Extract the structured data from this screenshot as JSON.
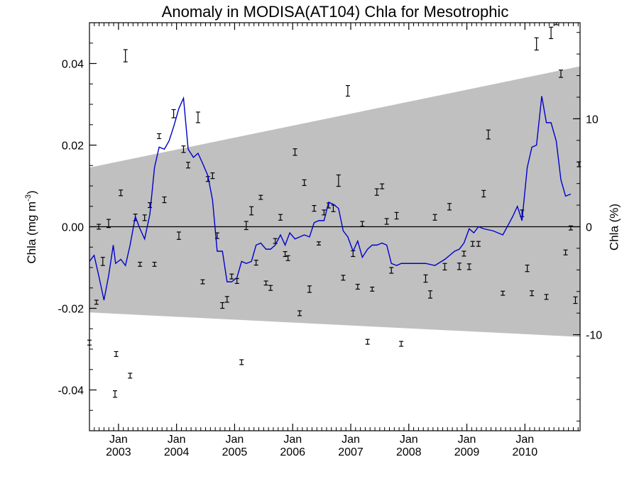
{
  "chart_data": {
    "type": "scatter",
    "title": "Anomaly in MODISA(AT104) Chla for Mesotrophic",
    "ylabel_left": "Chla (mg m",
    "ylabel_left_superscript": "-3",
    "ylabel_left_close": ")",
    "ylabel_right": "Chla (%)",
    "xlim": [
      2002.5,
      2010.95
    ],
    "ylim": [
      -0.05,
      0.05
    ],
    "y2lim": [
      -18.9,
      18.9
    ],
    "grid": false,
    "yticks_left": [
      {
        "value": 0.04,
        "label": "0.04"
      },
      {
        "value": 0.02,
        "label": "0.02"
      },
      {
        "value": 0.0,
        "label": "0.00"
      },
      {
        "value": -0.02,
        "label": "-0.02"
      },
      {
        "value": -0.04,
        "label": "-0.04"
      }
    ],
    "yticks_right": [
      {
        "value": 10,
        "label": "10"
      },
      {
        "value": 0,
        "label": "0"
      },
      {
        "value": -10,
        "label": "-10"
      }
    ],
    "xticks": [
      {
        "value": 2003,
        "month": "Jan",
        "year": "2003"
      },
      {
        "value": 2004,
        "month": "Jan",
        "year": "2004"
      },
      {
        "value": 2005,
        "month": "Jan",
        "year": "2005"
      },
      {
        "value": 2006,
        "month": "Jan",
        "year": "2006"
      },
      {
        "value": 2007,
        "month": "Jan",
        "year": "2007"
      },
      {
        "value": 2008,
        "month": "Jan",
        "year": "2008"
      },
      {
        "value": 2009,
        "month": "Jan",
        "year": "2009"
      },
      {
        "value": 2010,
        "month": "Jan",
        "year": "2010"
      }
    ],
    "band": {
      "color": "#c0c0c0",
      "upper": [
        [
          2002.5,
          0.0145
        ],
        [
          2010.95,
          0.0393
        ]
      ],
      "lower": [
        [
          2002.5,
          -0.021
        ],
        [
          2010.95,
          -0.027
        ]
      ]
    },
    "zero_line": {
      "y": 0,
      "color": "#000000"
    },
    "line_series": {
      "color": "#0000cc",
      "points": [
        [
          2002.5,
          -0.0085
        ],
        [
          2002.58,
          -0.007
        ],
        [
          2002.66,
          -0.012
        ],
        [
          2002.75,
          -0.018
        ],
        [
          2002.83,
          -0.012
        ],
        [
          2002.91,
          -0.0045
        ],
        [
          2002.95,
          -0.009
        ],
        [
          2003.04,
          -0.008
        ],
        [
          2003.12,
          -0.0095
        ],
        [
          2003.2,
          -0.0045
        ],
        [
          2003.29,
          0.0025
        ],
        [
          2003.37,
          -0.0005
        ],
        [
          2003.45,
          -0.003
        ],
        [
          2003.54,
          0.003
        ],
        [
          2003.62,
          0.0145
        ],
        [
          2003.7,
          0.0195
        ],
        [
          2003.79,
          0.019
        ],
        [
          2003.87,
          0.021
        ],
        [
          2003.95,
          0.0245
        ],
        [
          2004.04,
          0.029
        ],
        [
          2004.12,
          0.0315
        ],
        [
          2004.2,
          0.019
        ],
        [
          2004.29,
          0.017
        ],
        [
          2004.37,
          0.018
        ],
        [
          2004.45,
          0.0155
        ],
        [
          2004.54,
          0.0125
        ],
        [
          2004.62,
          0.0065
        ],
        [
          2004.7,
          -0.006
        ],
        [
          2004.79,
          -0.006
        ],
        [
          2004.87,
          -0.0135
        ],
        [
          2004.95,
          -0.0135
        ],
        [
          2005.04,
          -0.0125
        ],
        [
          2005.12,
          -0.0085
        ],
        [
          2005.2,
          -0.009
        ],
        [
          2005.29,
          -0.0085
        ],
        [
          2005.37,
          -0.0045
        ],
        [
          2005.45,
          -0.004
        ],
        [
          2005.54,
          -0.0055
        ],
        [
          2005.62,
          -0.0055
        ],
        [
          2005.7,
          -0.0045
        ],
        [
          2005.79,
          -0.002
        ],
        [
          2005.87,
          -0.0045
        ],
        [
          2005.95,
          -0.0015
        ],
        [
          2006.04,
          -0.003
        ],
        [
          2006.12,
          -0.0025
        ],
        [
          2006.2,
          -0.002
        ],
        [
          2006.29,
          -0.0025
        ],
        [
          2006.37,
          0.001
        ],
        [
          2006.45,
          0.0015
        ],
        [
          2006.54,
          0.0015
        ],
        [
          2006.62,
          0.006
        ],
        [
          2006.7,
          0.0055
        ],
        [
          2006.79,
          0.0045
        ],
        [
          2006.87,
          -0.001
        ],
        [
          2006.95,
          -0.0025
        ],
        [
          2007.04,
          -0.006
        ],
        [
          2007.12,
          -0.0035
        ],
        [
          2007.2,
          -0.0075
        ],
        [
          2007.29,
          -0.0055
        ],
        [
          2007.37,
          -0.0045
        ],
        [
          2007.45,
          -0.0045
        ],
        [
          2007.54,
          -0.004
        ],
        [
          2007.62,
          -0.0045
        ],
        [
          2007.7,
          -0.009
        ],
        [
          2007.79,
          -0.0095
        ],
        [
          2007.87,
          -0.009
        ],
        [
          2008.04,
          -0.009
        ],
        [
          2008.29,
          -0.009
        ],
        [
          2008.45,
          -0.0095
        ],
        [
          2008.62,
          -0.008
        ],
        [
          2008.79,
          -0.006
        ],
        [
          2008.87,
          -0.0055
        ],
        [
          2008.95,
          -0.004
        ],
        [
          2009.04,
          -0.0005
        ],
        [
          2009.12,
          -0.0015
        ],
        [
          2009.2,
          0.0
        ],
        [
          2009.29,
          -0.0005
        ],
        [
          2009.45,
          -0.001
        ],
        [
          2009.62,
          -0.002
        ],
        [
          2009.79,
          0.0025
        ],
        [
          2009.87,
          0.005
        ],
        [
          2009.95,
          0.0015
        ],
        [
          2010.04,
          0.0145
        ],
        [
          2010.12,
          0.0195
        ],
        [
          2010.2,
          0.02
        ],
        [
          2010.29,
          0.032
        ],
        [
          2010.37,
          0.0255
        ],
        [
          2010.45,
          0.0255
        ],
        [
          2010.54,
          0.021
        ],
        [
          2010.62,
          0.0115
        ],
        [
          2010.7,
          0.0075
        ],
        [
          2010.79,
          0.008
        ]
      ]
    },
    "error_bars": [
      [
        2002.5,
        -0.0284,
        0.0006
      ],
      [
        2002.62,
        -0.0185,
        0.0005
      ],
      [
        2002.66,
        0.0,
        0.0006
      ],
      [
        2002.73,
        -0.0085,
        0.001
      ],
      [
        2002.83,
        0.0008,
        0.001
      ],
      [
        2002.94,
        -0.041,
        0.0008
      ],
      [
        2002.96,
        -0.0312,
        0.0006
      ],
      [
        2003.04,
        0.0083,
        0.0007
      ],
      [
        2003.12,
        0.0419,
        0.0015
      ],
      [
        2003.2,
        -0.0365,
        0.0006
      ],
      [
        2003.29,
        0.0023,
        0.0008
      ],
      [
        2003.37,
        -0.0092,
        0.0005
      ],
      [
        2003.45,
        0.0022,
        0.0007
      ],
      [
        2003.54,
        0.0053,
        0.0006
      ],
      [
        2003.62,
        -0.0092,
        0.0005
      ],
      [
        2003.7,
        0.0222,
        0.0006
      ],
      [
        2003.79,
        0.0066,
        0.0007
      ],
      [
        2003.95,
        0.0277,
        0.001
      ],
      [
        2004.04,
        -0.0022,
        0.0009
      ],
      [
        2004.12,
        0.019,
        0.0008
      ],
      [
        2004.2,
        0.0151,
        0.0007
      ],
      [
        2004.37,
        0.0268,
        0.0013
      ],
      [
        2004.45,
        -0.0135,
        0.0005
      ],
      [
        2004.54,
        0.0117,
        0.0006
      ],
      [
        2004.62,
        0.0125,
        0.0007
      ],
      [
        2004.7,
        -0.0022,
        0.0007
      ],
      [
        2004.79,
        -0.0193,
        0.0007
      ],
      [
        2004.87,
        -0.0178,
        0.0007
      ],
      [
        2004.95,
        -0.0122,
        0.0006
      ],
      [
        2005.04,
        -0.0133,
        0.0006
      ],
      [
        2005.12,
        -0.0332,
        0.0006
      ],
      [
        2005.2,
        0.0003,
        0.001
      ],
      [
        2005.29,
        0.0039,
        0.001
      ],
      [
        2005.37,
        -0.0088,
        0.0006
      ],
      [
        2005.45,
        0.0072,
        0.0005
      ],
      [
        2005.54,
        -0.0138,
        0.0005
      ],
      [
        2005.62,
        -0.015,
        0.0006
      ],
      [
        2005.7,
        -0.0035,
        0.0006
      ],
      [
        2005.79,
        0.0023,
        0.0007
      ],
      [
        2005.87,
        -0.0067,
        0.0006
      ],
      [
        2005.92,
        -0.0077,
        0.0006
      ],
      [
        2006.04,
        0.0183,
        0.0008
      ],
      [
        2006.12,
        -0.0212,
        0.0006
      ],
      [
        2006.2,
        0.0108,
        0.0007
      ],
      [
        2006.29,
        -0.0153,
        0.0008
      ],
      [
        2006.37,
        0.0045,
        0.0007
      ],
      [
        2006.45,
        -0.0041,
        0.0004
      ],
      [
        2006.54,
        0.0035,
        0.0006
      ],
      [
        2006.62,
        0.0052,
        0.0006
      ],
      [
        2006.7,
        0.0045,
        0.0008
      ],
      [
        2006.79,
        0.0113,
        0.0014
      ],
      [
        2006.87,
        -0.0125,
        0.0006
      ],
      [
        2006.95,
        0.0333,
        0.0013
      ],
      [
        2007.04,
        -0.0066,
        0.0007
      ],
      [
        2007.12,
        -0.0147,
        0.0006
      ],
      [
        2007.2,
        0.0007,
        0.0006
      ],
      [
        2007.29,
        -0.0282,
        0.0006
      ],
      [
        2007.37,
        -0.0153,
        0.0005
      ],
      [
        2007.45,
        0.0085,
        0.0008
      ],
      [
        2007.54,
        0.0099,
        0.0006
      ],
      [
        2007.62,
        0.0013,
        0.0007
      ],
      [
        2007.7,
        -0.0107,
        0.0007
      ],
      [
        2007.79,
        0.0027,
        0.0008
      ],
      [
        2007.87,
        -0.0287,
        0.0006
      ],
      [
        2008.29,
        -0.0127,
        0.0009
      ],
      [
        2008.37,
        -0.0166,
        0.0009
      ],
      [
        2008.45,
        0.0023,
        0.0007
      ],
      [
        2008.62,
        -0.0098,
        0.0008
      ],
      [
        2008.7,
        0.0049,
        0.0008
      ],
      [
        2008.87,
        -0.0097,
        0.0008
      ],
      [
        2008.95,
        -0.0066,
        0.0006
      ],
      [
        2009.04,
        -0.0098,
        0.0007
      ],
      [
        2009.1,
        -0.0042,
        0.0006
      ],
      [
        2009.2,
        -0.0042,
        0.0006
      ],
      [
        2009.29,
        0.0081,
        0.0008
      ],
      [
        2009.37,
        0.0226,
        0.0011
      ],
      [
        2009.62,
        -0.0163,
        0.0005
      ],
      [
        2009.95,
        0.0033,
        0.0008
      ],
      [
        2010.04,
        -0.0102,
        0.0008
      ],
      [
        2010.12,
        -0.0163,
        0.0006
      ],
      [
        2010.2,
        0.0448,
        0.0015
      ],
      [
        2010.37,
        -0.0172,
        0.0006
      ],
      [
        2010.45,
        0.0475,
        0.0014
      ],
      [
        2010.54,
        0.0498,
        0.0003
      ],
      [
        2010.62,
        0.0375,
        0.0009
      ],
      [
        2010.7,
        -0.0063,
        0.0006
      ],
      [
        2010.79,
        -0.0003,
        0.0005
      ],
      [
        2010.87,
        -0.018,
        0.0008
      ],
      [
        2010.93,
        0.0153,
        0.0006
      ]
    ]
  }
}
